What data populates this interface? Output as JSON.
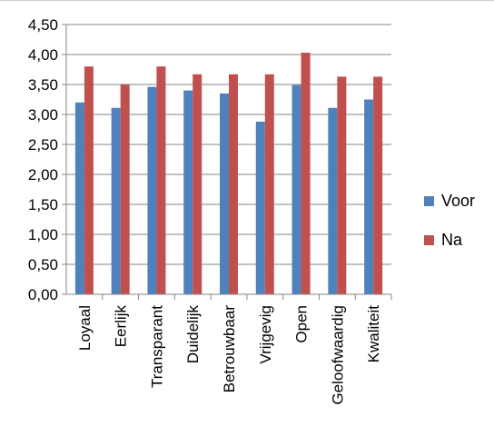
{
  "chart_data": {
    "type": "bar",
    "categories": [
      "Loyaal",
      "Eerlijk",
      "Transparant",
      "Duidelijk",
      "Betrouwbaar",
      "Vrijgevig",
      "Open",
      "Geloofwaardig",
      "Kwaliteit"
    ],
    "series": [
      {
        "name": "Voor",
        "color": "#4f81bd",
        "values": [
          3.2,
          3.11,
          3.46,
          3.4,
          3.35,
          2.88,
          3.49,
          3.11,
          3.25
        ]
      },
      {
        "name": "Na",
        "color": "#c0504d",
        "values": [
          3.8,
          3.5,
          3.8,
          3.67,
          3.67,
          3.67,
          4.03,
          3.63,
          3.63
        ]
      }
    ],
    "ylim": [
      0,
      4.5
    ],
    "yticks": [
      "0,00",
      "0,50",
      "1,00",
      "1,50",
      "2,00",
      "2,50",
      "3,00",
      "3,50",
      "4,00",
      "4,50"
    ],
    "title": "",
    "xlabel": "",
    "ylabel": "",
    "grid": true,
    "legend_position": "right"
  }
}
